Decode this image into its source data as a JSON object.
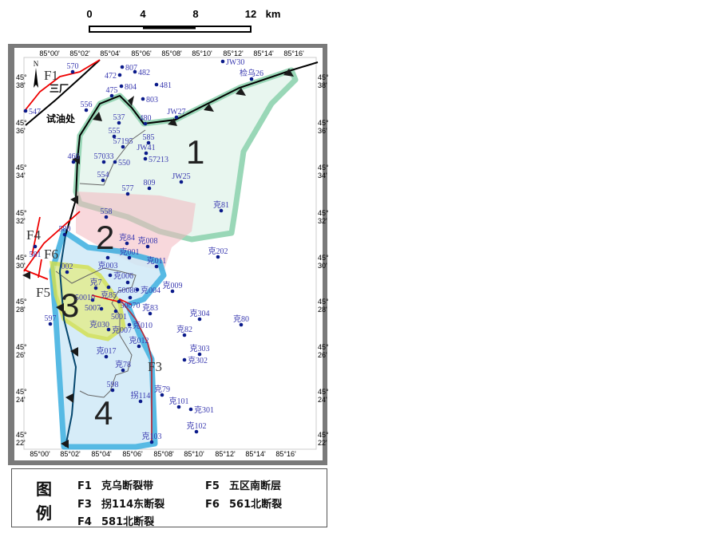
{
  "scale_bar": {
    "ticks": [
      "0",
      "4",
      "8",
      "12"
    ],
    "unit": "km"
  },
  "map": {
    "north_label": "N",
    "top_lon_labels": [
      "85°00'",
      "85°02'",
      "85°04'",
      "85°06'",
      "85°08'",
      "85°10'",
      "85°12'",
      "85°14'",
      "85°16'"
    ],
    "bottom_lon_labels": [
      "85°00'",
      "85°02'",
      "85°04'",
      "85°06'",
      "85°08'",
      "85°10'",
      "85°12'",
      "85°14'",
      "85°16'"
    ],
    "lat_labels": [
      "45°38'",
      "45°36'",
      "45°34'",
      "45°32'",
      "45°30'",
      "45°28'",
      "45°26'",
      "45°24'",
      "45°22'"
    ],
    "zones": [
      "1",
      "2",
      "3",
      "4"
    ],
    "zone_colors": {
      "1": "#8fd3b0",
      "2": "#f2b8c0",
      "3": "#d4e04a",
      "4": "#3aaee0"
    },
    "fault_labels": [
      "F1",
      "F3",
      "F4",
      "F5",
      "F6"
    ],
    "place_labels": [
      "三厂",
      "试油处"
    ],
    "wells": [
      "570",
      "807",
      "472",
      "482",
      "804",
      "481",
      "475",
      "803",
      "556",
      "547",
      "537",
      "480",
      "JW27",
      "555",
      "585",
      "57195",
      "JW41",
      "57213",
      "466",
      "57033",
      "550",
      "554",
      "577",
      "809",
      "JW25",
      "克81",
      "JW30",
      "检乌26",
      "558",
      "580",
      "581",
      "克84",
      "克008",
      "克202",
      "克003",
      "克001",
      "克011",
      "002",
      "克006",
      "50086",
      "克7",
      "克85",
      "克004",
      "克009",
      "5007",
      "50070",
      "5001",
      "克030",
      "克83",
      "克304",
      "克80",
      "597",
      "50010",
      "克010",
      "克007",
      "克82",
      "克012",
      "克303",
      "克017",
      "克302",
      "克78",
      "598",
      "克79",
      "拐114",
      "克101",
      "克301",
      "克102",
      "克103"
    ]
  },
  "legend": {
    "title": "图例",
    "items": [
      {
        "code": "F1",
        "name": "克乌断裂带"
      },
      {
        "code": "F5",
        "name": "五区南断层"
      },
      {
        "code": "F3",
        "name": "拐114东断裂"
      },
      {
        "code": "F6",
        "name": "561北断裂"
      },
      {
        "code": "F4",
        "name": "581北断裂"
      }
    ]
  }
}
